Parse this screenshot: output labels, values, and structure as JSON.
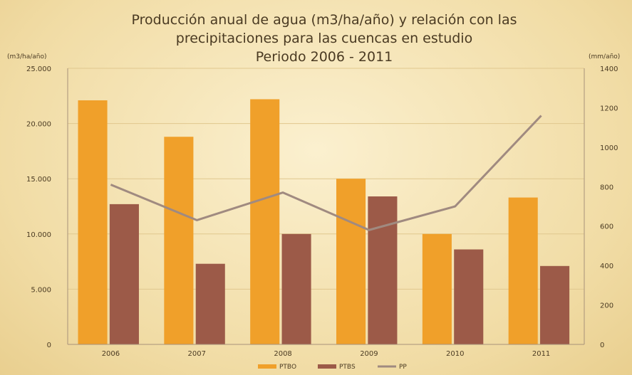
{
  "chart_data": {
    "type": "bar",
    "title_lines": [
      "Producción anual de agua (m3/ha/año) y relación con las",
      "precipitaciones para las cuencas en estudio",
      "Periodo 2006 - 2011"
    ],
    "y_left_unit": "(m3/ha/año)",
    "y_right_unit": "(mm/año)",
    "categories": [
      "2006",
      "2007",
      "2008",
      "2009",
      "2010",
      "2011"
    ],
    "y_left_ticks": [
      "0",
      "5.000",
      "10.000",
      "15.000",
      "20.000",
      "25.000"
    ],
    "y_left_range": [
      0,
      25000
    ],
    "y_right_ticks": [
      "0",
      "200",
      "400",
      "600",
      "800",
      "1000",
      "1200",
      "1400"
    ],
    "y_right_range": [
      0,
      1400
    ],
    "series": [
      {
        "name": "PTBO",
        "kind": "bar",
        "axis": "left",
        "color": "#f0a02a",
        "values": [
          22100,
          18800,
          22200,
          15000,
          10000,
          13300
        ]
      },
      {
        "name": "PTBS",
        "kind": "bar",
        "axis": "left",
        "color": "#9c5a48",
        "values": [
          12700,
          7300,
          10000,
          13400,
          8600,
          7100
        ]
      },
      {
        "name": "PP",
        "kind": "line",
        "axis": "right",
        "color": "#a08a80",
        "values": [
          810,
          630,
          770,
          580,
          700,
          1160
        ]
      }
    ],
    "grid": true,
    "legend_position": "bottom"
  }
}
